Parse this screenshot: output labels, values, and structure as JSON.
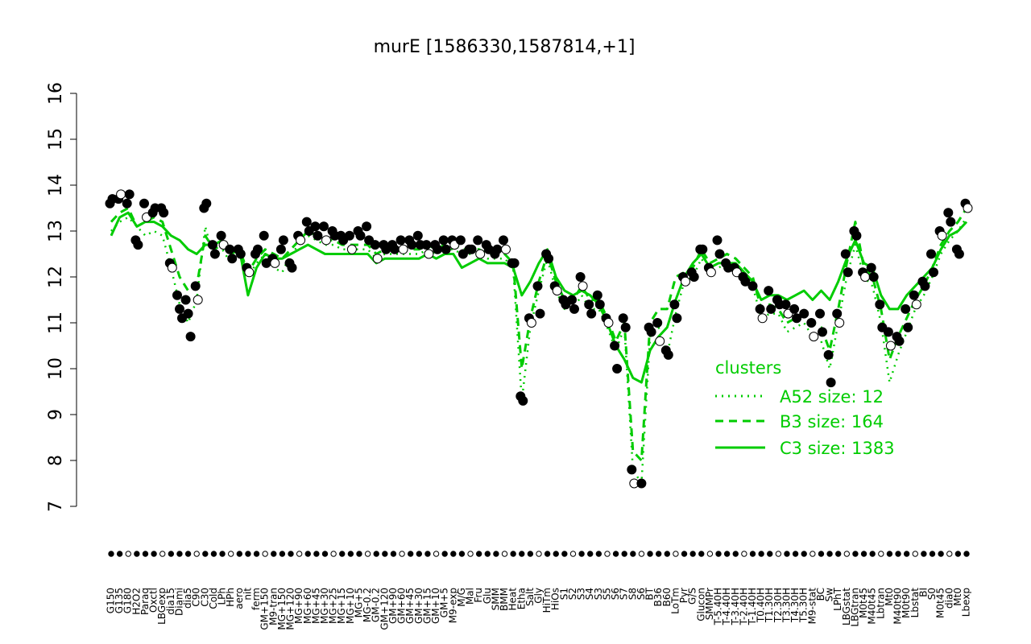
{
  "chart_data": {
    "type": "line",
    "title": "murE [1586330,1587814,+1]",
    "xlabel": "",
    "ylabel": "",
    "ylim": [
      7,
      16
    ],
    "y_ticks": [
      "7",
      "8",
      "9",
      "10",
      "11",
      "12",
      "13",
      "14",
      "15",
      "16"
    ],
    "x_tick_labels": [
      "G150",
      "G135",
      "G180",
      "H2O2",
      "Paraq",
      "Oxctl",
      "LBGexp",
      "dia15",
      "Diami",
      "dia5",
      "C90",
      "C30",
      "Cold",
      "LPh",
      "HPh",
      "aero",
      "nit",
      "ferm",
      "GM+150",
      "M9-tran",
      "MG+150",
      "MG+120",
      "MG+90",
      "MG+60",
      "MG+45",
      "MG+30",
      "MG+25",
      "MG+15",
      "MG+10",
      "MG+5",
      "MG-0.2",
      "GM-0.2",
      "GM+120",
      "GM+90",
      "GM+60",
      "GM+45",
      "GM+30",
      "GM+15",
      "GM+10",
      "GM+5",
      "M9-exp",
      "M/G",
      "Mal",
      "Fru",
      "Glu",
      "SMM",
      "BMM",
      "Heat",
      "Etha",
      "Salt",
      "Gly",
      "HiTm",
      "HiOs",
      "S1",
      "S2",
      "S3",
      "S4",
      "S3",
      "S5",
      "S6",
      "S7",
      "S8",
      "S6",
      "BT",
      "B36",
      "B60",
      "LoTm",
      "Pyr",
      "G/S",
      "Glucon",
      "SMMPr",
      "T-5.40H",
      "T-4.40H",
      "T-3.40H",
      "T-2.40H",
      "T-1.40H",
      "T0.40H",
      "T1.30H",
      "T2.30H",
      "T3.30H",
      "T4.30H",
      "T5.30H",
      "M9-stat",
      "BC",
      "Sw",
      "LPhT",
      "LBGstat",
      "LBGtran",
      "M0t45",
      "M40t45",
      "Lbtran",
      "Mt0",
      "M40t90",
      "M0t90",
      "Lbstat",
      "BI",
      "S0",
      "M0t45",
      "dia0",
      "Mt0",
      "Lbexp"
    ],
    "series": [
      {
        "name": "A52 size: 12",
        "style": "dotted",
        "color": "#00cc00",
        "values": [
          13.0,
          13.2,
          13.3,
          13.1,
          12.9,
          13.0,
          12.9,
          12.2,
          11.4,
          11.0,
          11.5,
          13.1,
          12.4,
          12.6,
          12.3,
          12.6,
          12.0,
          12.3,
          12.5,
          12.2,
          12.1,
          12.5,
          12.7,
          12.9,
          12.8,
          12.7,
          12.7,
          12.6,
          12.6,
          12.6,
          12.6,
          12.4,
          12.5,
          12.5,
          12.5,
          12.5,
          12.5,
          12.6,
          12.5,
          12.6,
          12.6,
          12.5,
          12.5,
          12.5,
          12.4,
          12.4,
          12.4,
          12.2,
          9.3,
          10.9,
          11.7,
          12.4,
          11.7,
          11.3,
          11.3,
          11.6,
          11.3,
          11.3,
          10.9,
          10.4,
          10.9,
          7.8,
          7.5,
          10.7,
          10.9,
          10.3,
          11.2,
          11.9,
          12.0,
          12.4,
          12.1,
          12.2,
          12.3,
          12.2,
          12.0,
          11.8,
          11.1,
          11.2,
          11.2,
          10.8,
          10.9,
          11.0,
          10.7,
          10.6,
          10.0,
          11.0,
          12.0,
          12.7,
          12.0,
          11.8,
          11.0,
          9.7,
          10.3,
          10.8,
          11.3,
          11.6,
          12.0,
          12.5,
          12.8,
          13.0,
          13.3
        ]
      },
      {
        "name": "B3 size: 164",
        "style": "dashed",
        "color": "#00cc00",
        "values": [
          13.2,
          13.4,
          13.5,
          13.1,
          13.2,
          13.3,
          13.2,
          12.6,
          12.0,
          11.7,
          11.8,
          12.9,
          12.6,
          12.7,
          12.5,
          12.6,
          12.1,
          12.4,
          12.6,
          12.5,
          12.4,
          12.6,
          12.8,
          13.0,
          12.9,
          12.8,
          12.8,
          12.7,
          12.7,
          12.7,
          12.7,
          12.5,
          12.6,
          12.6,
          12.6,
          12.6,
          12.6,
          12.7,
          12.6,
          12.7,
          12.7,
          12.6,
          12.6,
          12.6,
          12.5,
          12.5,
          12.5,
          12.3,
          10.0,
          11.1,
          11.9,
          12.5,
          11.9,
          11.5,
          11.5,
          11.8,
          11.5,
          11.5,
          11.1,
          10.6,
          11.0,
          8.2,
          8.0,
          11.0,
          11.3,
          11.3,
          12.0,
          12.1,
          12.2,
          12.6,
          12.3,
          12.4,
          12.5,
          12.4,
          12.2,
          12.0,
          11.3,
          11.4,
          11.3,
          11.0,
          11.1,
          11.2,
          11.0,
          10.9,
          10.4,
          11.3,
          12.3,
          13.2,
          12.2,
          12.0,
          11.3,
          10.2,
          10.7,
          11.1,
          11.5,
          11.8,
          12.2,
          12.7,
          13.0,
          13.2,
          13.5
        ]
      },
      {
        "name": "C3 size: 1383",
        "style": "solid",
        "color": "#00cc00",
        "values": [
          12.9,
          13.3,
          13.4,
          13.1,
          13.2,
          13.2,
          13.1,
          12.9,
          12.8,
          12.6,
          12.5,
          12.7,
          12.7,
          12.8,
          12.5,
          12.6,
          11.6,
          12.2,
          12.5,
          12.4,
          12.4,
          12.5,
          12.6,
          12.7,
          12.6,
          12.5,
          12.5,
          12.5,
          12.5,
          12.5,
          12.5,
          12.3,
          12.4,
          12.4,
          12.4,
          12.4,
          12.4,
          12.5,
          12.4,
          12.5,
          12.5,
          12.2,
          12.3,
          12.4,
          12.3,
          12.3,
          12.3,
          12.2,
          11.6,
          11.9,
          12.3,
          12.6,
          12.0,
          11.7,
          11.6,
          11.7,
          11.6,
          11.4,
          11.0,
          10.5,
          10.2,
          9.8,
          9.7,
          10.4,
          10.7,
          10.9,
          11.5,
          12.0,
          12.3,
          12.5,
          12.2,
          12.3,
          12.3,
          12.3,
          12.1,
          11.9,
          11.5,
          11.6,
          11.6,
          11.5,
          11.6,
          11.7,
          11.5,
          11.7,
          11.5,
          11.9,
          12.4,
          12.8,
          12.3,
          12.2,
          11.6,
          11.3,
          11.3,
          11.6,
          11.8,
          12.0,
          12.2,
          12.6,
          12.9,
          13.0,
          13.2
        ]
      }
    ],
    "points": [
      {
        "label": "G150",
        "values": [
          13.6,
          13.7
        ]
      },
      {
        "label": "G135",
        "values": [
          13.7,
          13.8
        ]
      },
      {
        "label": "G180",
        "values": [
          13.6,
          13.8
        ]
      },
      {
        "label": "H2O2",
        "values": [
          12.8,
          12.7
        ]
      },
      {
        "label": "Paraq",
        "values": [
          13.6,
          13.3
        ]
      },
      {
        "label": "Oxctl",
        "values": [
          13.4,
          13.5
        ]
      },
      {
        "label": "LBGexp",
        "values": [
          13.5,
          13.4
        ]
      },
      {
        "label": "dia15",
        "values": [
          12.3,
          12.2
        ]
      },
      {
        "label": "Diami",
        "values": [
          11.6,
          11.3,
          11.1
        ]
      },
      {
        "label": "dia5",
        "values": [
          11.5,
          11.2,
          10.7
        ]
      },
      {
        "label": "C90",
        "values": [
          11.8,
          11.5
        ]
      },
      {
        "label": "C30",
        "values": [
          13.5,
          13.6
        ]
      },
      {
        "label": "Cold",
        "values": [
          12.7,
          12.5
        ]
      },
      {
        "label": "LPh",
        "values": [
          12.9,
          12.7
        ]
      },
      {
        "label": "HPh",
        "values": [
          12.6,
          12.4
        ]
      },
      {
        "label": "aero",
        "values": [
          12.6,
          12.5
        ]
      },
      {
        "label": "nit",
        "values": [
          12.2,
          12.1
        ]
      },
      {
        "label": "ferm",
        "values": [
          12.5,
          12.6
        ]
      },
      {
        "label": "GM+150",
        "values": [
          12.9,
          12.3
        ]
      },
      {
        "label": "M9-tran",
        "values": [
          12.4,
          12.3
        ]
      },
      {
        "label": "MG+150",
        "values": [
          12.6,
          12.8
        ]
      },
      {
        "label": "MG+120",
        "values": [
          12.3,
          12.2
        ]
      },
      {
        "label": "MG+90",
        "values": [
          12.9,
          12.8
        ]
      },
      {
        "label": "MG+60",
        "values": [
          13.2,
          13.0
        ]
      },
      {
        "label": "MG+45",
        "values": [
          13.1,
          12.9
        ]
      },
      {
        "label": "MG+30",
        "values": [
          13.1,
          12.8
        ]
      },
      {
        "label": "MG+25",
        "values": [
          13.0,
          12.9
        ]
      },
      {
        "label": "MG+15",
        "values": [
          12.9,
          12.8
        ]
      },
      {
        "label": "MG+10",
        "values": [
          12.9,
          12.6
        ]
      },
      {
        "label": "MG+5",
        "values": [
          13.0,
          12.9
        ]
      },
      {
        "label": "MG-0.2",
        "values": [
          13.1,
          12.8
        ]
      },
      {
        "label": "GM-0.2",
        "values": [
          12.7,
          12.4
        ]
      },
      {
        "label": "GM+120",
        "values": [
          12.7,
          12.6
        ]
      },
      {
        "label": "GM+90",
        "values": [
          12.7,
          12.6
        ]
      },
      {
        "label": "GM+60",
        "values": [
          12.8,
          12.6
        ]
      },
      {
        "label": "GM+45",
        "values": [
          12.8,
          12.7
        ]
      },
      {
        "label": "GM+30",
        "values": [
          12.9,
          12.7
        ]
      },
      {
        "label": "GM+15",
        "values": [
          12.7,
          12.5
        ]
      },
      {
        "label": "GM+10",
        "values": [
          12.7,
          12.6
        ]
      },
      {
        "label": "GM+5",
        "values": [
          12.8,
          12.6
        ]
      },
      {
        "label": "M9-exp",
        "values": [
          12.8,
          12.7
        ]
      },
      {
        "label": "M/G",
        "values": [
          12.8,
          12.5
        ]
      },
      {
        "label": "Mal",
        "values": [
          12.6,
          12.6
        ]
      },
      {
        "label": "Fru",
        "values": [
          12.8,
          12.5
        ]
      },
      {
        "label": "Glu",
        "values": [
          12.7,
          12.6
        ]
      },
      {
        "label": "SMM",
        "values": [
          12.5,
          12.6
        ]
      },
      {
        "label": "BMM",
        "values": [
          12.8,
          12.6
        ]
      },
      {
        "label": "Heat",
        "values": [
          12.3,
          12.3
        ]
      },
      {
        "label": "Etha",
        "values": [
          9.4,
          9.3
        ]
      },
      {
        "label": "Salt",
        "values": [
          11.1,
          11.0
        ]
      },
      {
        "label": "Gly",
        "values": [
          11.8,
          11.2
        ]
      },
      {
        "label": "HiTm",
        "values": [
          12.5,
          12.4
        ]
      },
      {
        "label": "HiOs",
        "values": [
          11.8,
          11.7
        ]
      },
      {
        "label": "S1",
        "values": [
          11.5,
          11.4
        ]
      },
      {
        "label": "S2",
        "values": [
          11.5,
          11.3
        ]
      },
      {
        "label": "S3",
        "values": [
          12.0,
          11.8
        ]
      },
      {
        "label": "S4",
        "values": [
          11.4,
          11.2
        ]
      },
      {
        "label": "S3",
        "values": [
          11.6,
          11.4
        ]
      },
      {
        "label": "S5",
        "values": [
          11.1,
          11.0
        ]
      },
      {
        "label": "S6",
        "values": [
          10.5,
          10.0
        ]
      },
      {
        "label": "S7",
        "values": [
          11.1,
          10.9
        ]
      },
      {
        "label": "S8",
        "values": [
          7.8,
          7.5
        ]
      },
      {
        "label": "S6",
        "values": [
          7.5
        ]
      },
      {
        "label": "BT",
        "values": [
          10.9,
          10.8
        ]
      },
      {
        "label": "B36",
        "values": [
          11.0,
          10.6
        ]
      },
      {
        "label": "B60",
        "values": [
          10.4,
          10.3
        ]
      },
      {
        "label": "LoTm",
        "values": [
          11.4,
          11.1
        ]
      },
      {
        "label": "Pyr",
        "values": [
          12.0,
          11.9
        ]
      },
      {
        "label": "G/S",
        "values": [
          12.1,
          12.0
        ]
      },
      {
        "label": "Glucon",
        "values": [
          12.6,
          12.6
        ]
      },
      {
        "label": "SMMPr",
        "values": [
          12.2,
          12.1
        ]
      },
      {
        "label": "T-5.40H",
        "values": [
          12.8,
          12.5
        ]
      },
      {
        "label": "T-4.40H",
        "values": [
          12.3,
          12.2
        ]
      },
      {
        "label": "T-3.40H",
        "values": [
          12.2,
          12.1
        ]
      },
      {
        "label": "T-2.40H",
        "values": [
          12.0,
          11.9
        ]
      },
      {
        "label": "T-1.40H",
        "values": [
          11.8
        ]
      },
      {
        "label": "T0.40H",
        "values": [
          11.3,
          11.1
        ]
      },
      {
        "label": "T1.30H",
        "values": [
          11.7,
          11.3
        ]
      },
      {
        "label": "T2.30H",
        "values": [
          11.5,
          11.4
        ]
      },
      {
        "label": "T3.30H",
        "values": [
          11.4,
          11.2
        ]
      },
      {
        "label": "T4.30H",
        "values": [
          11.3,
          11.1
        ]
      },
      {
        "label": "T5.30H",
        "values": [
          11.2
        ]
      },
      {
        "label": "M9-stat",
        "values": [
          11.0,
          10.7
        ]
      },
      {
        "label": "BC",
        "values": [
          11.2,
          10.8
        ]
      },
      {
        "label": "Sw",
        "values": [
          10.3,
          9.7
        ]
      },
      {
        "label": "LPhT",
        "values": [
          11.2,
          11.0
        ]
      },
      {
        "label": "LBGstat",
        "values": [
          12.5,
          12.1
        ]
      },
      {
        "label": "LBGtran",
        "values": [
          13.0,
          12.9
        ]
      },
      {
        "label": "M0t45",
        "values": [
          12.1,
          12.0
        ]
      },
      {
        "label": "M40t45",
        "values": [
          12.2,
          12.0
        ]
      },
      {
        "label": "Lbtran",
        "values": [
          11.4,
          10.9
        ]
      },
      {
        "label": "Mt0",
        "values": [
          10.8,
          10.5
        ]
      },
      {
        "label": "M40t90",
        "values": [
          10.7,
          10.6
        ]
      },
      {
        "label": "M0t90",
        "values": [
          11.3,
          10.9
        ]
      },
      {
        "label": "Lbstat",
        "values": [
          11.6,
          11.4
        ]
      },
      {
        "label": "BI",
        "values": [
          11.9,
          11.8
        ]
      },
      {
        "label": "S0",
        "values": [
          12.5,
          12.1
        ]
      },
      {
        "label": "M0t45",
        "values": [
          13.0,
          12.9
        ]
      },
      {
        "label": "dia0",
        "values": [
          13.4,
          13.2
        ]
      },
      {
        "label": "Mt0",
        "values": [
          12.6,
          12.5
        ]
      },
      {
        "label": "Lbexp",
        "values": [
          13.6,
          13.5
        ]
      }
    ],
    "legend": {
      "title": "clusters",
      "placement": "right",
      "entries": [
        "A52 size: 12",
        "B3 size: 164",
        "C3 size: 1383"
      ]
    },
    "grid": false
  }
}
